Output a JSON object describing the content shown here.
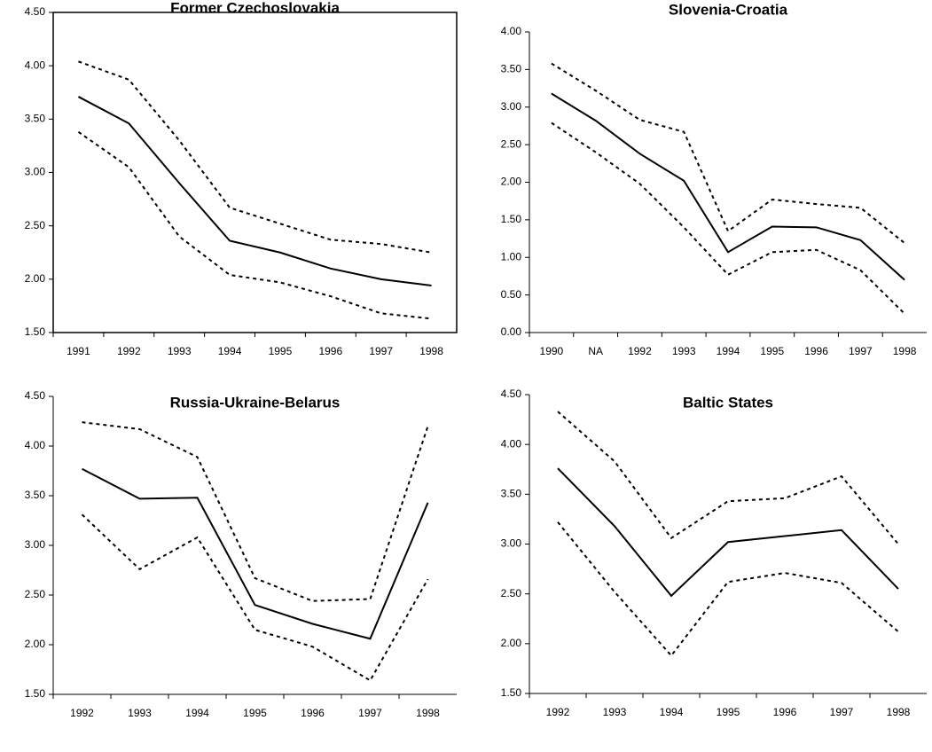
{
  "chart_data": [
    {
      "type": "line",
      "title": "Former Czechoslovakia",
      "frame": true,
      "categories": [
        "1991",
        "1992",
        "1993",
        "1994",
        "1995",
        "1996",
        "1997",
        "1998"
      ],
      "series": [
        {
          "color": "#000000",
          "dash": "solid",
          "values": [
            3.71,
            3.46,
            2.9,
            2.36,
            2.25,
            2.1,
            2.0,
            1.94
          ]
        },
        {
          "color": "#000000",
          "dash": "dashed",
          "values": [
            4.04,
            3.87,
            3.3,
            2.67,
            2.52,
            2.37,
            2.33,
            2.25
          ]
        },
        {
          "color": "#000000",
          "dash": "dashed",
          "values": [
            3.38,
            3.05,
            2.4,
            2.04,
            1.97,
            1.84,
            1.68,
            1.63
          ]
        }
      ],
      "ylim": [
        1.5,
        4.5
      ],
      "yticks": [
        {
          "value": 1.5,
          "label": "1.50"
        },
        {
          "value": 2,
          "label": "2.00"
        },
        {
          "value": 2.5,
          "label": "2.50"
        },
        {
          "value": 3,
          "label": "3.00"
        },
        {
          "value": 3.5,
          "label": "3.50"
        },
        {
          "value": 4,
          "label": "4.00"
        },
        {
          "value": 4.5,
          "label": "4.50"
        }
      ]
    },
    {
      "type": "line",
      "title": "Slovenia-Croatia",
      "frame": false,
      "categories": [
        "1990",
        "NA",
        "1992",
        "1993",
        "1994",
        "1995",
        "1996",
        "1997",
        "1998"
      ],
      "series": [
        {
          "color": "#000000",
          "dash": "solid",
          "values": [
            3.18,
            2.82,
            2.38,
            2.02,
            1.07,
            1.41,
            1.4,
            1.23,
            0.7
          ]
        },
        {
          "color": "#000000",
          "dash": "dashed",
          "values": [
            3.58,
            3.22,
            2.83,
            2.67,
            1.35,
            1.77,
            1.71,
            1.66,
            1.19
          ]
        },
        {
          "color": "#000000",
          "dash": "dashed",
          "values": [
            2.79,
            2.4,
            1.98,
            1.4,
            0.77,
            1.07,
            1.1,
            0.83,
            0.25
          ]
        }
      ],
      "ylim": [
        0,
        4
      ],
      "yticks": [
        {
          "value": 0,
          "label": "0.00"
        },
        {
          "value": 0.5,
          "label": "0.50"
        },
        {
          "value": 1,
          "label": "1.00"
        },
        {
          "value": 1.5,
          "label": "1.50"
        },
        {
          "value": 2,
          "label": "2.00"
        },
        {
          "value": 2.5,
          "label": "2.50"
        },
        {
          "value": 3,
          "label": "3.00"
        },
        {
          "value": 3.5,
          "label": "3.50"
        },
        {
          "value": 4,
          "label": "4.00"
        }
      ]
    },
    {
      "type": "line",
      "title": "Russia-Ukraine-Belarus",
      "frame": false,
      "categories": [
        "1992",
        "1993",
        "1994",
        "1995",
        "1996",
        "1997",
        "1998"
      ],
      "series": [
        {
          "color": "#000000",
          "dash": "solid",
          "values": [
            3.77,
            3.47,
            3.48,
            2.4,
            2.21,
            2.06,
            3.43
          ]
        },
        {
          "color": "#000000",
          "dash": "dashed",
          "values": [
            4.24,
            4.17,
            3.89,
            2.67,
            2.44,
            2.46,
            4.2
          ]
        },
        {
          "color": "#000000",
          "dash": "dashed",
          "values": [
            3.31,
            2.76,
            3.08,
            2.15,
            1.98,
            1.64,
            2.66
          ]
        }
      ],
      "ylim": [
        1.5,
        4.5
      ],
      "yticks": [
        {
          "value": 1.5,
          "label": "1.50"
        },
        {
          "value": 2,
          "label": "2.00"
        },
        {
          "value": 2.5,
          "label": "2.50"
        },
        {
          "value": 3,
          "label": "3.00"
        },
        {
          "value": 3.5,
          "label": "3.50"
        },
        {
          "value": 4,
          "label": "4.00"
        },
        {
          "value": 4.5,
          "label": "4.50"
        }
      ]
    },
    {
      "type": "line",
      "title": "Baltic States",
      "frame": false,
      "categories": [
        "1992",
        "1993",
        "1994",
        "1995",
        "1996",
        "1997",
        "1998"
      ],
      "series": [
        {
          "color": "#000000",
          "dash": "solid",
          "values": [
            3.76,
            3.18,
            2.48,
            3.02,
            3.08,
            3.14,
            2.55
          ]
        },
        {
          "color": "#000000",
          "dash": "dashed",
          "values": [
            4.33,
            3.83,
            3.06,
            3.43,
            3.46,
            3.68,
            3.0
          ]
        },
        {
          "color": "#000000",
          "dash": "dashed",
          "values": [
            3.22,
            2.52,
            1.88,
            2.62,
            2.71,
            2.61,
            2.12
          ]
        }
      ],
      "ylim": [
        1.5,
        4.5
      ],
      "yticks": [
        {
          "value": 1.5,
          "label": "1.50"
        },
        {
          "value": 2,
          "label": "2.00"
        },
        {
          "value": 2.5,
          "label": "2.50"
        },
        {
          "value": 3,
          "label": "3.00"
        },
        {
          "value": 3.5,
          "label": "3.50"
        },
        {
          "value": 4,
          "label": "4.00"
        },
        {
          "value": 4.5,
          "label": "4.50"
        }
      ]
    }
  ]
}
